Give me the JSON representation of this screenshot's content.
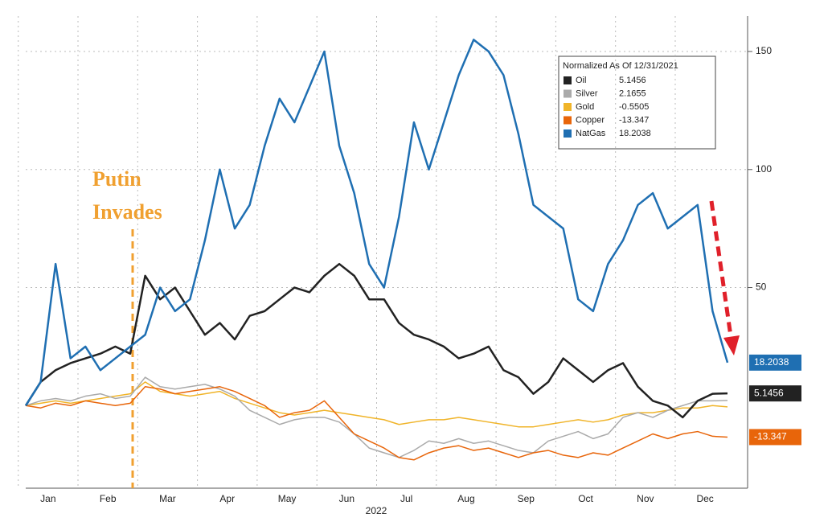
{
  "chart_data": {
    "type": "line",
    "legend_title": "Normalized As Of 12/31/2021",
    "annotation": [
      "Putin",
      "Invades"
    ],
    "xlabel": "2022",
    "categories": [
      null,
      "Jan",
      null,
      null,
      null,
      "Feb",
      null,
      null,
      null,
      "Mar",
      null,
      null,
      null,
      "Apr",
      null,
      null,
      null,
      "May",
      null,
      null,
      null,
      "Jun",
      null,
      null,
      null,
      "Jul",
      null,
      null,
      null,
      "Aug",
      null,
      null,
      null,
      "Sep",
      null,
      null,
      null,
      "Oct",
      null,
      null,
      null,
      "Nov",
      null,
      null,
      null,
      "Dec",
      null,
      null
    ],
    "ylim": [
      -35,
      165
    ],
    "yticks": [
      50,
      100,
      150
    ],
    "grid": true,
    "series": [
      {
        "name": "Oil",
        "color": "#222222",
        "last_value": 5.1456,
        "values": [
          0,
          10,
          15,
          18,
          20,
          22,
          25,
          22,
          55,
          45,
          50,
          40,
          30,
          35,
          28,
          38,
          40,
          45,
          50,
          48,
          55,
          60,
          55,
          45,
          45,
          35,
          30,
          28,
          25,
          20,
          22,
          25,
          15,
          12,
          5,
          10,
          20,
          15,
          10,
          15,
          18,
          8,
          2,
          0,
          -5,
          2,
          5,
          5.1456
        ]
      },
      {
        "name": "Silver",
        "color": "#aaaaaa",
        "last_value": 2.1655,
        "values": [
          0,
          2,
          3,
          2,
          4,
          5,
          3,
          4,
          12,
          8,
          7,
          8,
          9,
          7,
          4,
          -2,
          -5,
          -8,
          -6,
          -5,
          -5,
          -7,
          -12,
          -18,
          -20,
          -22,
          -19,
          -15,
          -16,
          -14,
          -16,
          -15,
          -17,
          -19,
          -20,
          -15,
          -13,
          -11,
          -14,
          -12,
          -5,
          -3,
          -5,
          -2,
          0,
          2,
          2,
          2.1655
        ]
      },
      {
        "name": "Gold",
        "color": "#f0b429",
        "last_value": -0.5505,
        "values": [
          0,
          1,
          2,
          1,
          2,
          3,
          4,
          5,
          10,
          6,
          5,
          4,
          5,
          6,
          3,
          1,
          -1,
          -3,
          -4,
          -3,
          -2,
          -3,
          -4,
          -5,
          -6,
          -8,
          -7,
          -6,
          -6,
          -5,
          -6,
          -7,
          -8,
          -9,
          -9,
          -8,
          -7,
          -6,
          -7,
          -6,
          -4,
          -3,
          -3,
          -2,
          -1,
          -1,
          0,
          -0.5505
        ]
      },
      {
        "name": "Copper",
        "color": "#e8650a",
        "last_value": -13.347,
        "values": [
          0,
          -1,
          1,
          0,
          2,
          1,
          0,
          1,
          8,
          7,
          5,
          6,
          7,
          8,
          6,
          3,
          0,
          -5,
          -3,
          -2,
          2,
          -5,
          -12,
          -15,
          -18,
          -22,
          -23,
          -20,
          -18,
          -17,
          -19,
          -18,
          -20,
          -22,
          -20,
          -19,
          -21,
          -22,
          -20,
          -21,
          -18,
          -15,
          -12,
          -14,
          -12,
          -11,
          -13,
          -13.347
        ]
      },
      {
        "name": "NatGas",
        "color": "#1f6fb2",
        "last_value": 18.2038,
        "values": [
          0,
          10,
          60,
          20,
          25,
          15,
          20,
          25,
          30,
          50,
          40,
          45,
          70,
          100,
          75,
          85,
          110,
          130,
          120,
          135,
          150,
          110,
          90,
          60,
          50,
          80,
          120,
          100,
          120,
          140,
          155,
          150,
          140,
          115,
          85,
          80,
          75,
          45,
          40,
          60,
          70,
          85,
          90,
          75,
          80,
          85,
          40,
          18.2038
        ]
      }
    ]
  }
}
